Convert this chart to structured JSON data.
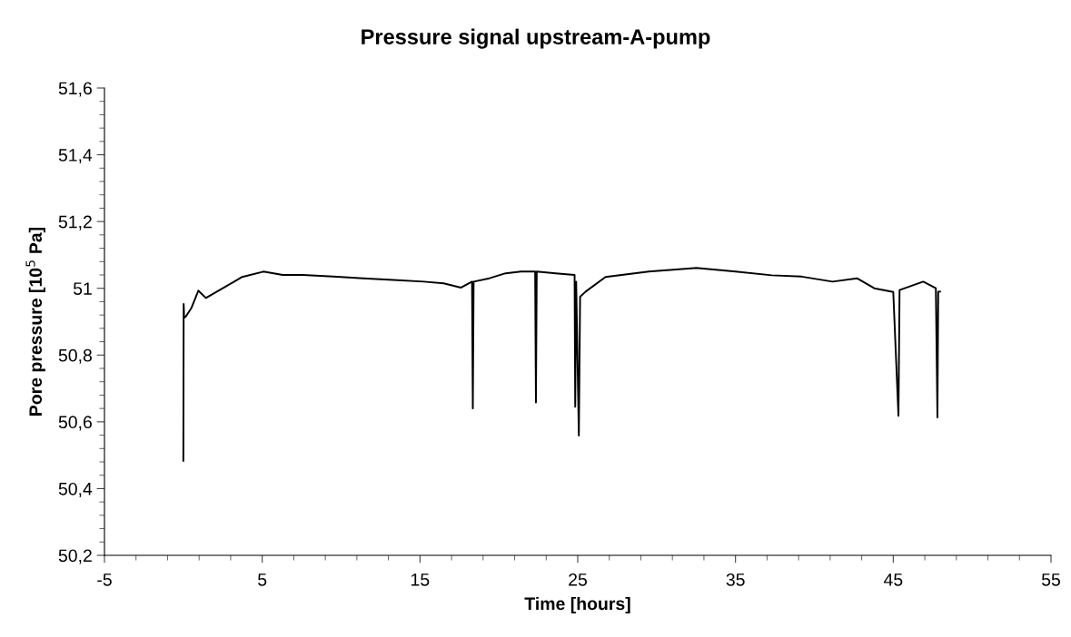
{
  "chart_data": {
    "type": "line",
    "title": "Pressure signal upstream-A-pump",
    "xlabel": "Time [hours]",
    "ylabel": "Pore pressure [10$^{5}$ Pa]",
    "series": [
      {
        "color": "#000000",
        "x": [
          0.0,
          0.02,
          0.05,
          0.15,
          0.5,
          0.95,
          1.43,
          2.5,
          3.73,
          5.07,
          6.3,
          7.57,
          9.5,
          11.4,
          13.3,
          15.25,
          16.5,
          17.6,
          18.3,
          18.35,
          18.4,
          19.4,
          20.43,
          21.4,
          22.3,
          22.35,
          22.4,
          23.6,
          24.8,
          24.84,
          24.9,
          25.07,
          25.15,
          25.5,
          26.76,
          29.5,
          32.5,
          35,
          37.3,
          39.2,
          41.15,
          42.7,
          43.8,
          45.0,
          45.33,
          45.4,
          46.9,
          47.7,
          47.8,
          47.85,
          47.97
        ],
        "values": [
          50.483,
          50.953,
          50.912,
          50.915,
          50.94,
          50.993,
          50.971,
          51.0,
          51.034,
          51.05,
          51.04,
          51.04,
          51.035,
          51.03,
          51.025,
          51.02,
          51.015,
          51.002,
          51.02,
          50.64,
          51.02,
          51.03,
          51.045,
          51.05,
          51.05,
          50.658,
          51.05,
          51.045,
          51.04,
          50.645,
          51.02,
          50.559,
          50.975,
          50.99,
          51.034,
          51.05,
          51.061,
          51.05,
          51.039,
          51.035,
          51.02,
          51.03,
          51.0,
          50.989,
          50.618,
          50.995,
          51.02,
          51.0,
          50.613,
          50.99,
          50.99
        ]
      }
    ],
    "xlim": [
      -5,
      55
    ],
    "xticks": [
      -5,
      5,
      15,
      25,
      35,
      45,
      55
    ],
    "ylim": [
      50.2,
      51.6
    ],
    "yticks": [
      {
        "value": 50.2,
        "label": "50,2"
      },
      {
        "value": 50.4,
        "label": "50,4"
      },
      {
        "value": 50.6,
        "label": "50,6"
      },
      {
        "value": 50.8,
        "label": "50,8"
      },
      {
        "value": 51,
        "label": "51"
      },
      {
        "value": 51.2,
        "label": "51,2"
      },
      {
        "value": 51.4,
        "label": "51,4"
      },
      {
        "value": 51.6,
        "label": "51,6"
      }
    ],
    "grid": false,
    "marker": "none",
    "line_style": "solid"
  }
}
